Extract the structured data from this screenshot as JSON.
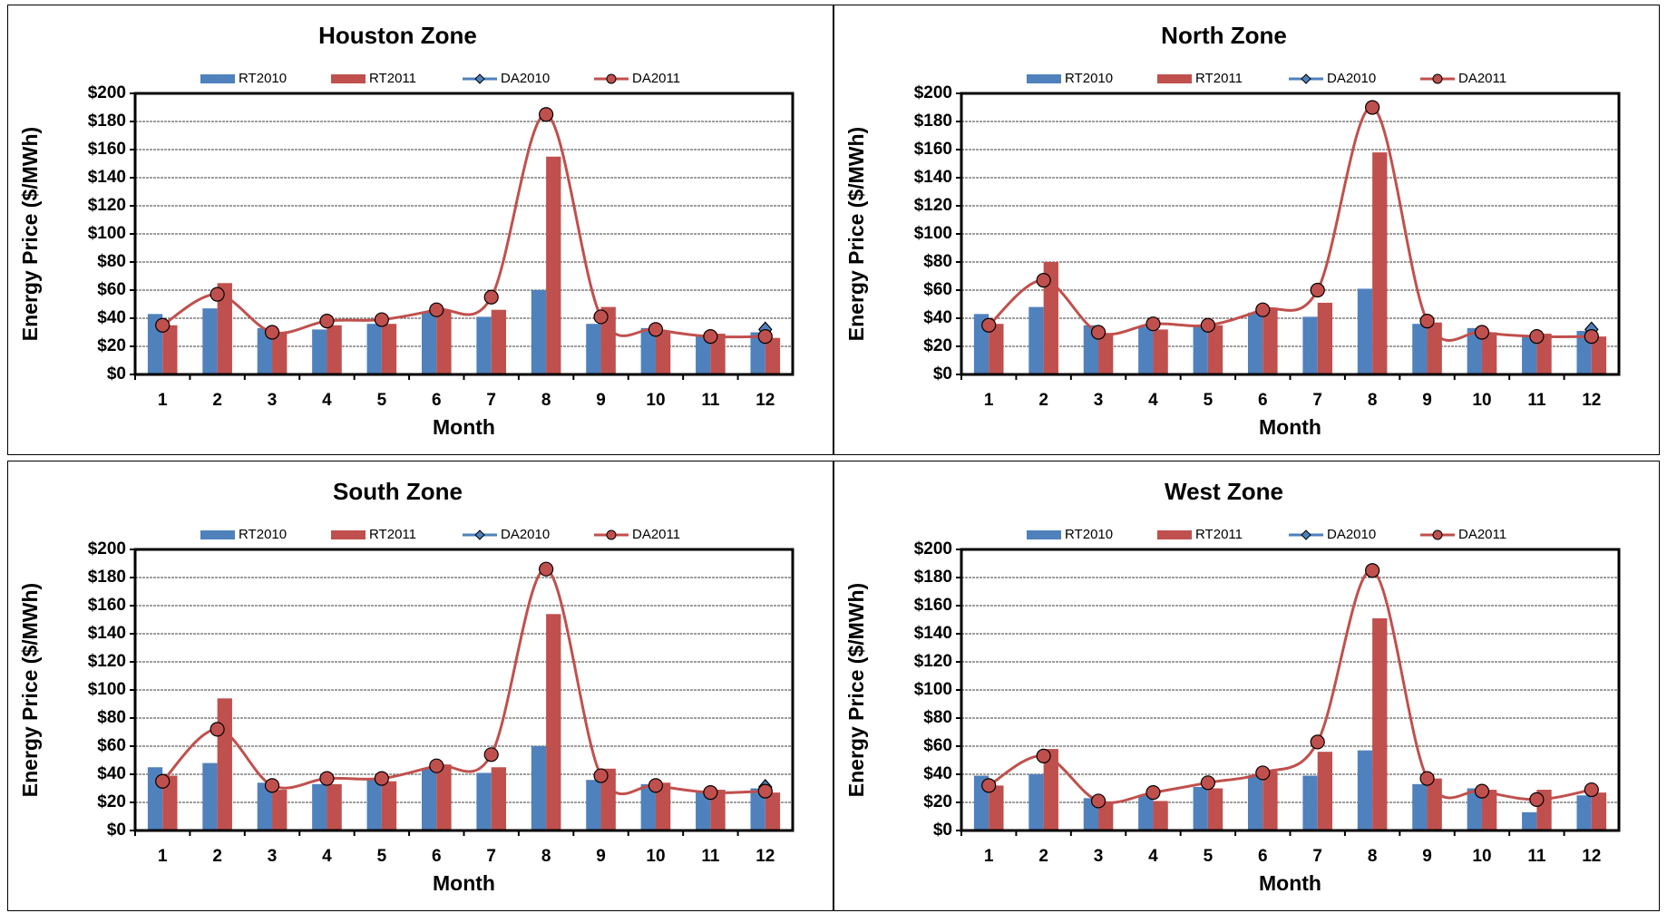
{
  "chart_data": [
    {
      "type": "bar",
      "title": "Houston Zone",
      "x_label": "Month",
      "y_label": "Energy Price ($/MWh)",
      "categories": [
        "1",
        "2",
        "3",
        "4",
        "5",
        "6",
        "7",
        "8",
        "9",
        "10",
        "11",
        "12"
      ],
      "series": [
        {
          "name": "RT2010",
          "type": "bar",
          "color": "#4f81bd",
          "values": [
            43,
            47,
            33,
            32,
            36,
            44,
            41,
            60,
            36,
            33,
            28,
            30
          ]
        },
        {
          "name": "RT2011",
          "type": "bar",
          "color": "#c0504d",
          "values": [
            35,
            65,
            29,
            35,
            36,
            46,
            46,
            155,
            48,
            30,
            29,
            26
          ]
        },
        {
          "name": "DA2010",
          "type": "line",
          "marker": "diamond",
          "color": "#4f81bd",
          "values": [
            null,
            null,
            null,
            null,
            null,
            null,
            null,
            null,
            null,
            null,
            null,
            32
          ]
        },
        {
          "name": "DA2011",
          "type": "line",
          "marker": "circle",
          "color": "#c0504d",
          "values": [
            35,
            57,
            30,
            38,
            39,
            46,
            55,
            185,
            41,
            32,
            27,
            27
          ]
        }
      ],
      "ylim": [
        0,
        200
      ],
      "yticks": [
        {
          "value": 0,
          "label": "$0"
        },
        {
          "value": 20,
          "label": "$20"
        },
        {
          "value": 40,
          "label": "$40"
        },
        {
          "value": 60,
          "label": "$60"
        },
        {
          "value": 80,
          "label": "$80"
        },
        {
          "value": 100,
          "label": "$100"
        },
        {
          "value": 120,
          "label": "$120"
        },
        {
          "value": 140,
          "label": "$140"
        },
        {
          "value": 160,
          "label": "$160"
        },
        {
          "value": 180,
          "label": "$180"
        },
        {
          "value": 200,
          "label": "$200"
        }
      ],
      "grid": true,
      "legend": "top"
    },
    {
      "type": "bar",
      "title": "North Zone",
      "x_label": "Month",
      "y_label": "Energy Price ($/MWh)",
      "categories": [
        "1",
        "2",
        "3",
        "4",
        "5",
        "6",
        "7",
        "8",
        "9",
        "10",
        "11",
        "12"
      ],
      "series": [
        {
          "name": "RT2010",
          "type": "bar",
          "color": "#4f81bd",
          "values": [
            43,
            48,
            35,
            34,
            35,
            44,
            41,
            61,
            36,
            33,
            27,
            31
          ]
        },
        {
          "name": "RT2011",
          "type": "bar",
          "color": "#c0504d",
          "values": [
            36,
            80,
            28,
            32,
            35,
            47,
            51,
            158,
            37,
            30,
            29,
            27
          ]
        },
        {
          "name": "DA2010",
          "type": "line",
          "marker": "diamond",
          "color": "#4f81bd",
          "values": [
            null,
            null,
            null,
            null,
            null,
            null,
            null,
            null,
            null,
            null,
            null,
            32
          ]
        },
        {
          "name": "DA2011",
          "type": "line",
          "marker": "circle",
          "color": "#c0504d",
          "values": [
            35,
            67,
            30,
            36,
            35,
            46,
            60,
            190,
            38,
            30,
            27,
            27
          ]
        }
      ],
      "ylim": [
        0,
        200
      ],
      "yticks": [
        {
          "value": 0,
          "label": "$0"
        },
        {
          "value": 20,
          "label": "$20"
        },
        {
          "value": 40,
          "label": "$40"
        },
        {
          "value": 60,
          "label": "$60"
        },
        {
          "value": 80,
          "label": "$80"
        },
        {
          "value": 100,
          "label": "$100"
        },
        {
          "value": 120,
          "label": "$120"
        },
        {
          "value": 140,
          "label": "$140"
        },
        {
          "value": 160,
          "label": "$160"
        },
        {
          "value": 180,
          "label": "$180"
        },
        {
          "value": 200,
          "label": "$200"
        }
      ],
      "grid": true,
      "legend": "top"
    },
    {
      "type": "bar",
      "title": "South Zone",
      "x_label": "Month",
      "y_label": "Energy Price ($/MWh)",
      "categories": [
        "1",
        "2",
        "3",
        "4",
        "5",
        "6",
        "7",
        "8",
        "9",
        "10",
        "11",
        "12"
      ],
      "series": [
        {
          "name": "RT2010",
          "type": "bar",
          "color": "#4f81bd",
          "values": [
            45,
            48,
            34,
            33,
            37,
            44,
            41,
            60,
            36,
            33,
            28,
            30
          ]
        },
        {
          "name": "RT2011",
          "type": "bar",
          "color": "#c0504d",
          "values": [
            39,
            94,
            29,
            33,
            35,
            47,
            45,
            154,
            44,
            34,
            29,
            27
          ]
        },
        {
          "name": "DA2010",
          "type": "line",
          "marker": "diamond",
          "color": "#4f81bd",
          "values": [
            null,
            null,
            null,
            null,
            null,
            null,
            null,
            null,
            null,
            null,
            null,
            31
          ]
        },
        {
          "name": "DA2011",
          "type": "line",
          "marker": "circle",
          "color": "#c0504d",
          "values": [
            35,
            72,
            32,
            37,
            37,
            46,
            54,
            186,
            39,
            32,
            27,
            28
          ]
        }
      ],
      "ylim": [
        0,
        200
      ],
      "yticks": [
        {
          "value": 0,
          "label": "$0"
        },
        {
          "value": 20,
          "label": "$20"
        },
        {
          "value": 40,
          "label": "$40"
        },
        {
          "value": 60,
          "label": "$60"
        },
        {
          "value": 80,
          "label": "$80"
        },
        {
          "value": 100,
          "label": "$100"
        },
        {
          "value": 120,
          "label": "$120"
        },
        {
          "value": 140,
          "label": "$140"
        },
        {
          "value": 160,
          "label": "$160"
        },
        {
          "value": 180,
          "label": "$180"
        },
        {
          "value": 200,
          "label": "$200"
        }
      ],
      "grid": true,
      "legend": "top"
    },
    {
      "type": "bar",
      "title": "West Zone",
      "x_label": "Month",
      "y_label": "Energy Price ($/MWh)",
      "categories": [
        "1",
        "2",
        "3",
        "4",
        "5",
        "6",
        "7",
        "8",
        "9",
        "10",
        "11",
        "12"
      ],
      "series": [
        {
          "name": "RT2010",
          "type": "bar",
          "color": "#4f81bd",
          "values": [
            39,
            40,
            23,
            25,
            31,
            39,
            39,
            57,
            33,
            30,
            13,
            25
          ]
        },
        {
          "name": "RT2011",
          "type": "bar",
          "color": "#c0504d",
          "values": [
            32,
            58,
            20,
            21,
            30,
            42,
            56,
            151,
            37,
            29,
            29,
            27
          ]
        },
        {
          "name": "DA2010",
          "type": "line",
          "marker": "diamond",
          "color": "#4f81bd",
          "values": [
            null,
            null,
            null,
            null,
            null,
            null,
            null,
            null,
            null,
            null,
            null,
            null
          ]
        },
        {
          "name": "DA2011",
          "type": "line",
          "marker": "circle",
          "color": "#c0504d",
          "values": [
            32,
            53,
            21,
            27,
            34,
            41,
            63,
            185,
            37,
            28,
            22,
            29
          ]
        }
      ],
      "ylim": [
        0,
        200
      ],
      "yticks": [
        {
          "value": 0,
          "label": "$0"
        },
        {
          "value": 20,
          "label": "$20"
        },
        {
          "value": 40,
          "label": "$40"
        },
        {
          "value": 60,
          "label": "$60"
        },
        {
          "value": 80,
          "label": "$80"
        },
        {
          "value": 100,
          "label": "$100"
        },
        {
          "value": 120,
          "label": "$120"
        },
        {
          "value": 140,
          "label": "$140"
        },
        {
          "value": 160,
          "label": "$160"
        },
        {
          "value": 180,
          "label": "$180"
        },
        {
          "value": 200,
          "label": "$200"
        }
      ],
      "grid": true,
      "legend": "top"
    }
  ]
}
